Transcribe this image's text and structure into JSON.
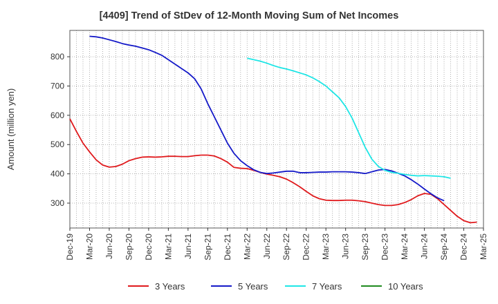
{
  "chart_data": {
    "type": "line",
    "title": "[4409]  Trend of StDev of 12-Month Moving Sum of Net Incomes",
    "xlabel": "",
    "ylabel": "Amount (million yen)",
    "ylim": [
      215,
      890
    ],
    "yticks": [
      300,
      400,
      500,
      600,
      700,
      800
    ],
    "grid": true,
    "legend_position": "bottom",
    "x_tick_labels": [
      "Dec-19",
      "Mar-20",
      "Jun-20",
      "Sep-20",
      "Dec-20",
      "Mar-21",
      "Jun-21",
      "Sep-21",
      "Dec-21",
      "Mar-22",
      "Jun-22",
      "Sep-22",
      "Dec-22",
      "Mar-23",
      "Jun-23",
      "Sep-23",
      "Dec-23",
      "Mar-24",
      "Jun-24",
      "Sep-24",
      "Dec-24",
      "Mar-25"
    ],
    "x_start": "Dec-19",
    "x_end": "Mar-25",
    "series": [
      {
        "name": "3 Years",
        "color": "#e0191c",
        "start": "Dec-19",
        "values": [
          588,
          545,
          505,
          475,
          448,
          430,
          423,
          425,
          433,
          445,
          452,
          457,
          458,
          457,
          458,
          460,
          460,
          459,
          459,
          462,
          464,
          464,
          461,
          452,
          440,
          422,
          419,
          418,
          412,
          405,
          399,
          395,
          390,
          382,
          370,
          356,
          340,
          325,
          315,
          310,
          309,
          309,
          310,
          310,
          308,
          305,
          300,
          295,
          292,
          292,
          295,
          302,
          312,
          325,
          333,
          330,
          315,
          295,
          275,
          255,
          240,
          233,
          235
        ]
      },
      {
        "name": "5 Years",
        "color": "#1419c8",
        "start": "Mar-20",
        "values": [
          870,
          868,
          864,
          858,
          852,
          845,
          840,
          836,
          830,
          824,
          815,
          805,
          790,
          775,
          760,
          745,
          725,
          690,
          640,
          595,
          550,
          505,
          470,
          445,
          428,
          414,
          405,
          401,
          403,
          406,
          409,
          409,
          404,
          404,
          405,
          406,
          406,
          407,
          407,
          407,
          406,
          404,
          401,
          407,
          413,
          415,
          410,
          402,
          393,
          380,
          365,
          348,
          332,
          318,
          308
        ]
      },
      {
        "name": "7 Years",
        "color": "#1ee6e6",
        "start": "Mar-22",
        "values": [
          795,
          790,
          785,
          778,
          770,
          763,
          758,
          752,
          745,
          738,
          728,
          715,
          700,
          680,
          660,
          630,
          590,
          540,
          490,
          450,
          425,
          412,
          405,
          402,
          398,
          395,
          393,
          394,
          393,
          392,
          390,
          385
        ]
      },
      {
        "name": "10 Years",
        "color": "#1f8a1f",
        "start": "Dec-24",
        "values": []
      }
    ]
  }
}
